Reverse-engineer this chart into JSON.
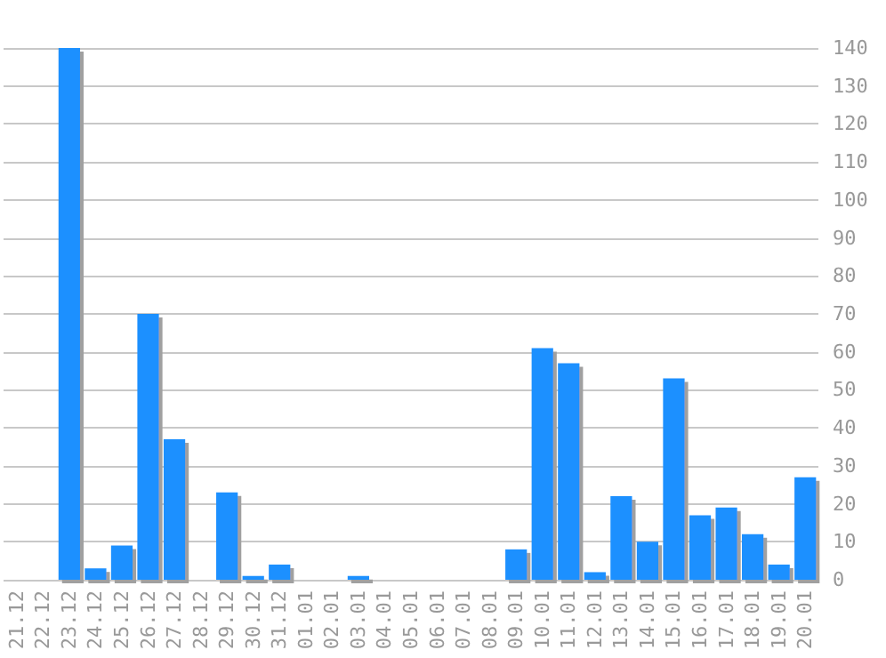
{
  "chart_data": {
    "type": "bar",
    "categories": [
      "21.12",
      "22.12",
      "23.12",
      "24.12",
      "25.12",
      "26.12",
      "27.12",
      "28.12",
      "29.12",
      "30.12",
      "31.12",
      "01.01",
      "02.01",
      "03.01",
      "04.01",
      "05.01",
      "06.01",
      "07.01",
      "08.01",
      "09.01",
      "10.01",
      "11.01",
      "12.01",
      "13.01",
      "14.01",
      "15.01",
      "16.01",
      "17.01",
      "18.01",
      "19.01",
      "20.01"
    ],
    "values": [
      0,
      0,
      140,
      3,
      9,
      70,
      37,
      0,
      23,
      1,
      4,
      0,
      0,
      1,
      0,
      0,
      0,
      0,
      0,
      8,
      61,
      57,
      2,
      22,
      10,
      53,
      17,
      19,
      12,
      4,
      27
    ],
    "color": "#1e90ff",
    "ylim": [
      0,
      140
    ],
    "yticks": [
      0,
      10,
      20,
      30,
      40,
      50,
      60,
      70,
      80,
      90,
      100,
      110,
      120,
      130,
      140
    ],
    "grid": "y"
  }
}
